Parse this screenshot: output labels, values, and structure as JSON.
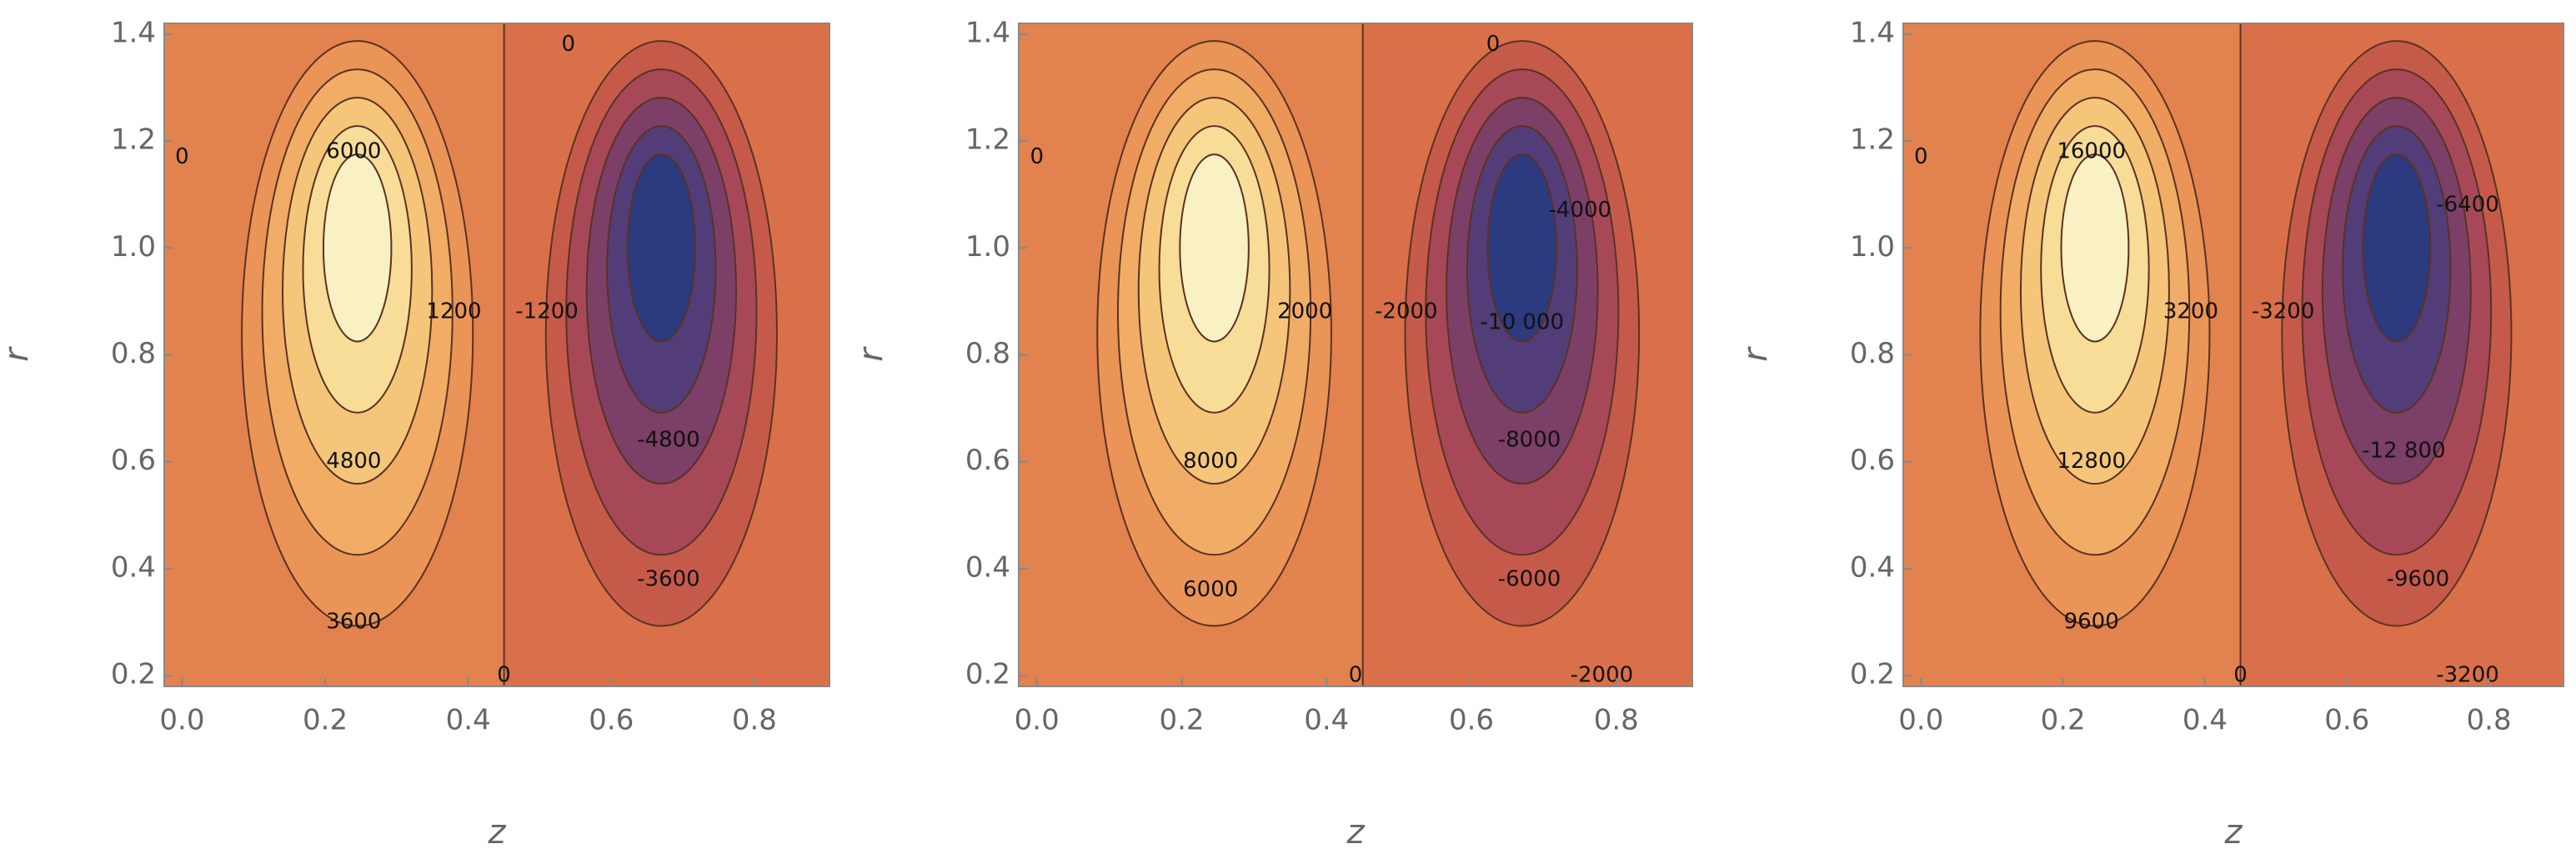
{
  "chart_data": [
    {
      "type": "contour",
      "xlabel": "z",
      "ylabel": "r",
      "xlim": [
        -0.025,
        0.905
      ],
      "ylim": [
        0.18,
        1.42
      ],
      "xticks": [
        {
          "value": 0,
          "label": "0.0"
        },
        0.2,
        0.4,
        0.6,
        0.8
      ],
      "yticks": [
        0.2,
        0.4,
        0.6,
        0.8,
        {
          "value": 1,
          "label": "1.0"
        },
        1.2,
        1.4
      ],
      "levels": [
        -6000,
        -4800,
        -3600,
        -2400,
        -1200,
        0,
        1200,
        2400,
        3600,
        4800,
        6000
      ],
      "contour_labels": [
        {
          "x": 0.24,
          "y": 1.18,
          "value": 6000
        },
        {
          "x": 0.38,
          "y": 0.88,
          "value": 1200
        },
        {
          "x": 0.51,
          "y": 0.88,
          "value": -1200
        },
        {
          "x": 0.24,
          "y": 0.6,
          "value": 4800
        },
        {
          "x": 0.68,
          "y": 0.64,
          "value": -4800
        },
        {
          "x": 0.24,
          "y": 0.3,
          "value": 3600
        },
        {
          "x": 0.68,
          "y": 0.38,
          "value": -3600
        },
        {
          "x": 0.45,
          "y": 0.2,
          "value": 0
        },
        {
          "x": 0.0,
          "y": 1.17,
          "value": 0
        },
        {
          "x": 0.54,
          "y": 1.38,
          "value": 0
        }
      ]
    },
    {
      "type": "contour",
      "xlabel": "z",
      "ylabel": "r",
      "xlim": [
        -0.025,
        0.905
      ],
      "ylim": [
        0.18,
        1.42
      ],
      "xticks": [
        {
          "value": 0,
          "label": "0.0"
        },
        0.2,
        0.4,
        0.6,
        0.8
      ],
      "yticks": [
        0.2,
        0.4,
        0.6,
        0.8,
        {
          "value": 1,
          "label": "1.0"
        },
        1.2,
        1.4
      ],
      "levels": [
        -10000,
        -8000,
        -6000,
        -4000,
        -2000,
        0,
        2000,
        4000,
        6000,
        8000,
        10000
      ],
      "contour_labels": [
        {
          "x": 0.37,
          "y": 0.88,
          "value": 2000
        },
        {
          "x": 0.51,
          "y": 0.88,
          "value": -2000
        },
        {
          "x": 0.67,
          "y": 0.86,
          "value": -10000,
          "label": "-10 000"
        },
        {
          "x": 0.75,
          "y": 1.07,
          "value": -4000
        },
        {
          "x": 0.24,
          "y": 0.6,
          "value": 8000
        },
        {
          "x": 0.68,
          "y": 0.64,
          "value": -8000
        },
        {
          "x": 0.24,
          "y": 0.36,
          "value": 6000
        },
        {
          "x": 0.68,
          "y": 0.38,
          "value": -6000
        },
        {
          "x": 0.78,
          "y": 0.2,
          "value": -2000
        },
        {
          "x": 0.44,
          "y": 0.2,
          "value": 0
        },
        {
          "x": 0.0,
          "y": 1.17,
          "value": 0
        },
        {
          "x": 0.63,
          "y": 1.38,
          "value": 0
        }
      ]
    },
    {
      "type": "contour",
      "xlabel": "z",
      "ylabel": "r",
      "xlim": [
        -0.025,
        0.905
      ],
      "ylim": [
        0.18,
        1.42
      ],
      "xticks": [
        {
          "value": 0,
          "label": "0.0"
        },
        0.2,
        0.4,
        0.6,
        0.8
      ],
      "yticks": [
        0.2,
        0.4,
        0.6,
        0.8,
        {
          "value": 1,
          "label": "1.0"
        },
        1.2,
        1.4
      ],
      "levels": [
        -16000,
        -12800,
        -9600,
        -6400,
        -3200,
        0,
        3200,
        6400,
        9600,
        12800,
        16000
      ],
      "contour_labels": [
        {
          "x": 0.24,
          "y": 1.18,
          "value": 16000
        },
        {
          "x": 0.38,
          "y": 0.88,
          "value": 3200
        },
        {
          "x": 0.51,
          "y": 0.88,
          "value": -3200
        },
        {
          "x": 0.77,
          "y": 1.08,
          "value": -6400
        },
        {
          "x": 0.24,
          "y": 0.6,
          "value": 12800
        },
        {
          "x": 0.68,
          "y": 0.62,
          "value": -12800,
          "label": "-12 800"
        },
        {
          "x": 0.24,
          "y": 0.3,
          "value": 9600
        },
        {
          "x": 0.7,
          "y": 0.38,
          "value": -9600
        },
        {
          "x": 0.77,
          "y": 0.2,
          "value": -3200
        },
        {
          "x": 0.45,
          "y": 0.2,
          "value": 0
        },
        {
          "x": 0.0,
          "y": 1.17,
          "value": 0
        }
      ]
    }
  ]
}
